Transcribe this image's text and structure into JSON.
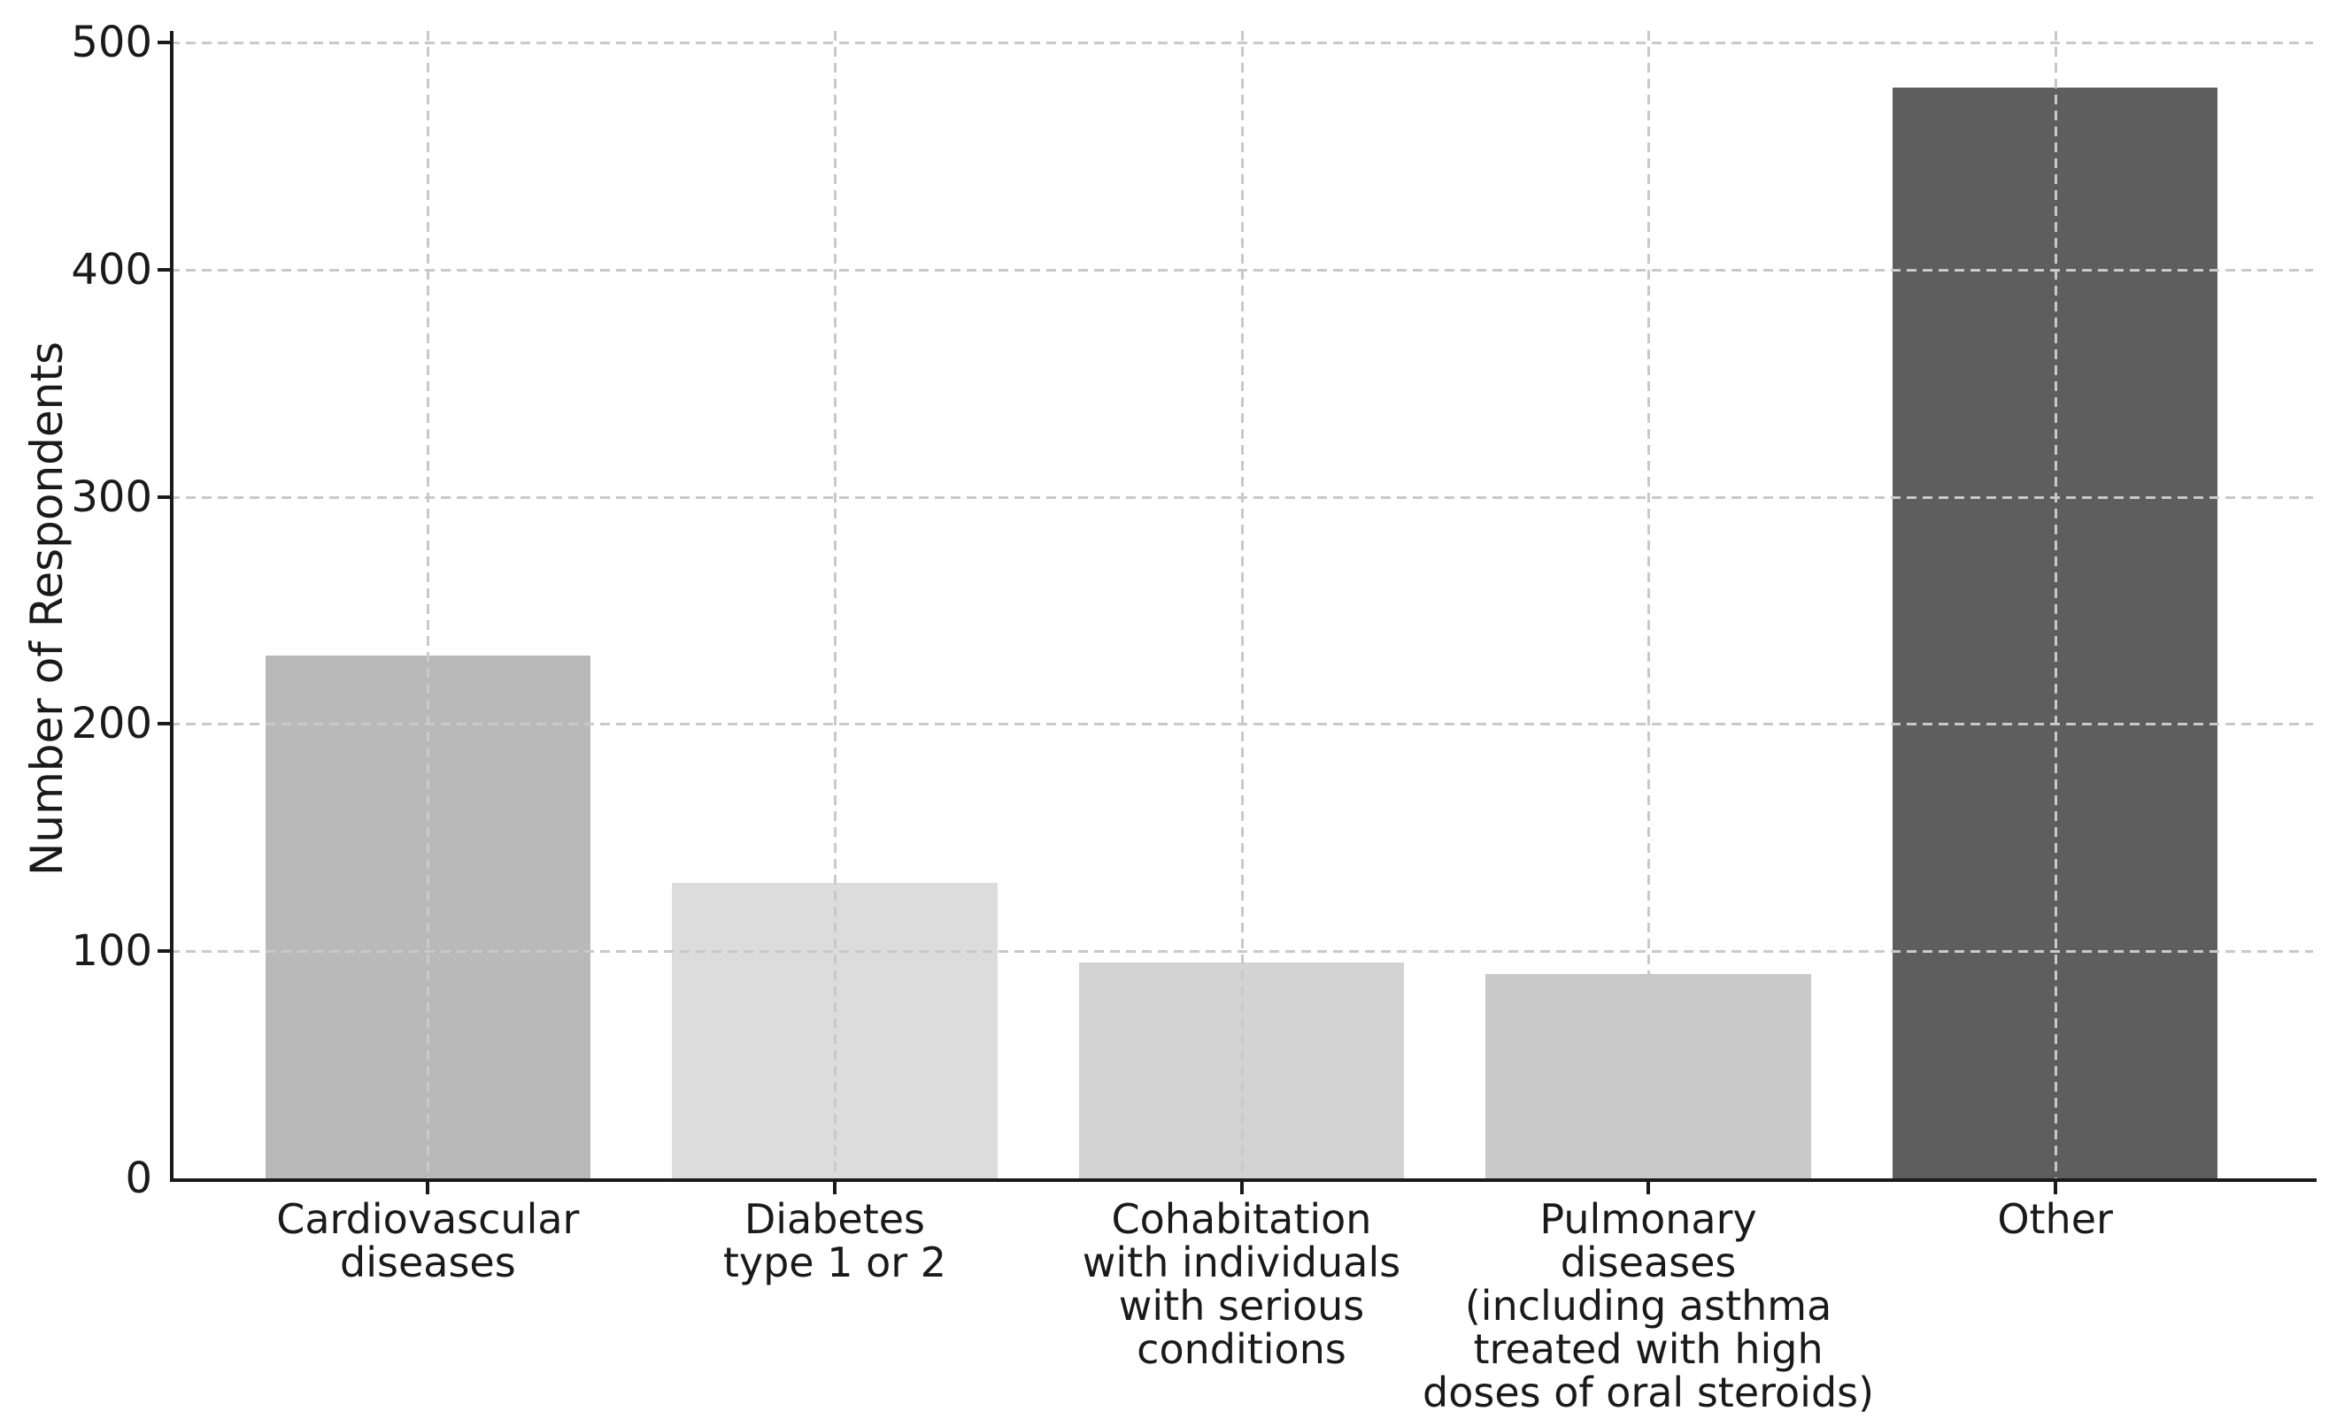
{
  "figure": {
    "background": "#ffffff",
    "text_color": "#1a1a1a",
    "spine_color": "#1a1a1a",
    "grid_color": "#c9c9c9"
  },
  "chart_data": {
    "type": "bar",
    "title": "",
    "xlabel": "",
    "ylabel": "Number of Respondents",
    "categories": [
      "Cardiovascular\ndiseases",
      "Diabetes\ntype 1 or 2",
      "Cohabitation\nwith individuals\nwith serious\nconditions",
      "Pulmonary\ndiseases\n(including asthma\ntreated with high\ndoses of oral steroids)",
      "Other"
    ],
    "values": [
      230,
      130,
      95,
      90,
      480
    ],
    "bar_colors": [
      "#b9b9b9",
      "#dcdcdc",
      "#d3d3d3",
      "#c9c9c9",
      "#5e5e5e"
    ],
    "yticks": [
      0,
      100,
      200,
      300,
      400,
      500
    ],
    "ylim": [
      0,
      505
    ],
    "grid": "both, dashed",
    "legend": "none"
  }
}
